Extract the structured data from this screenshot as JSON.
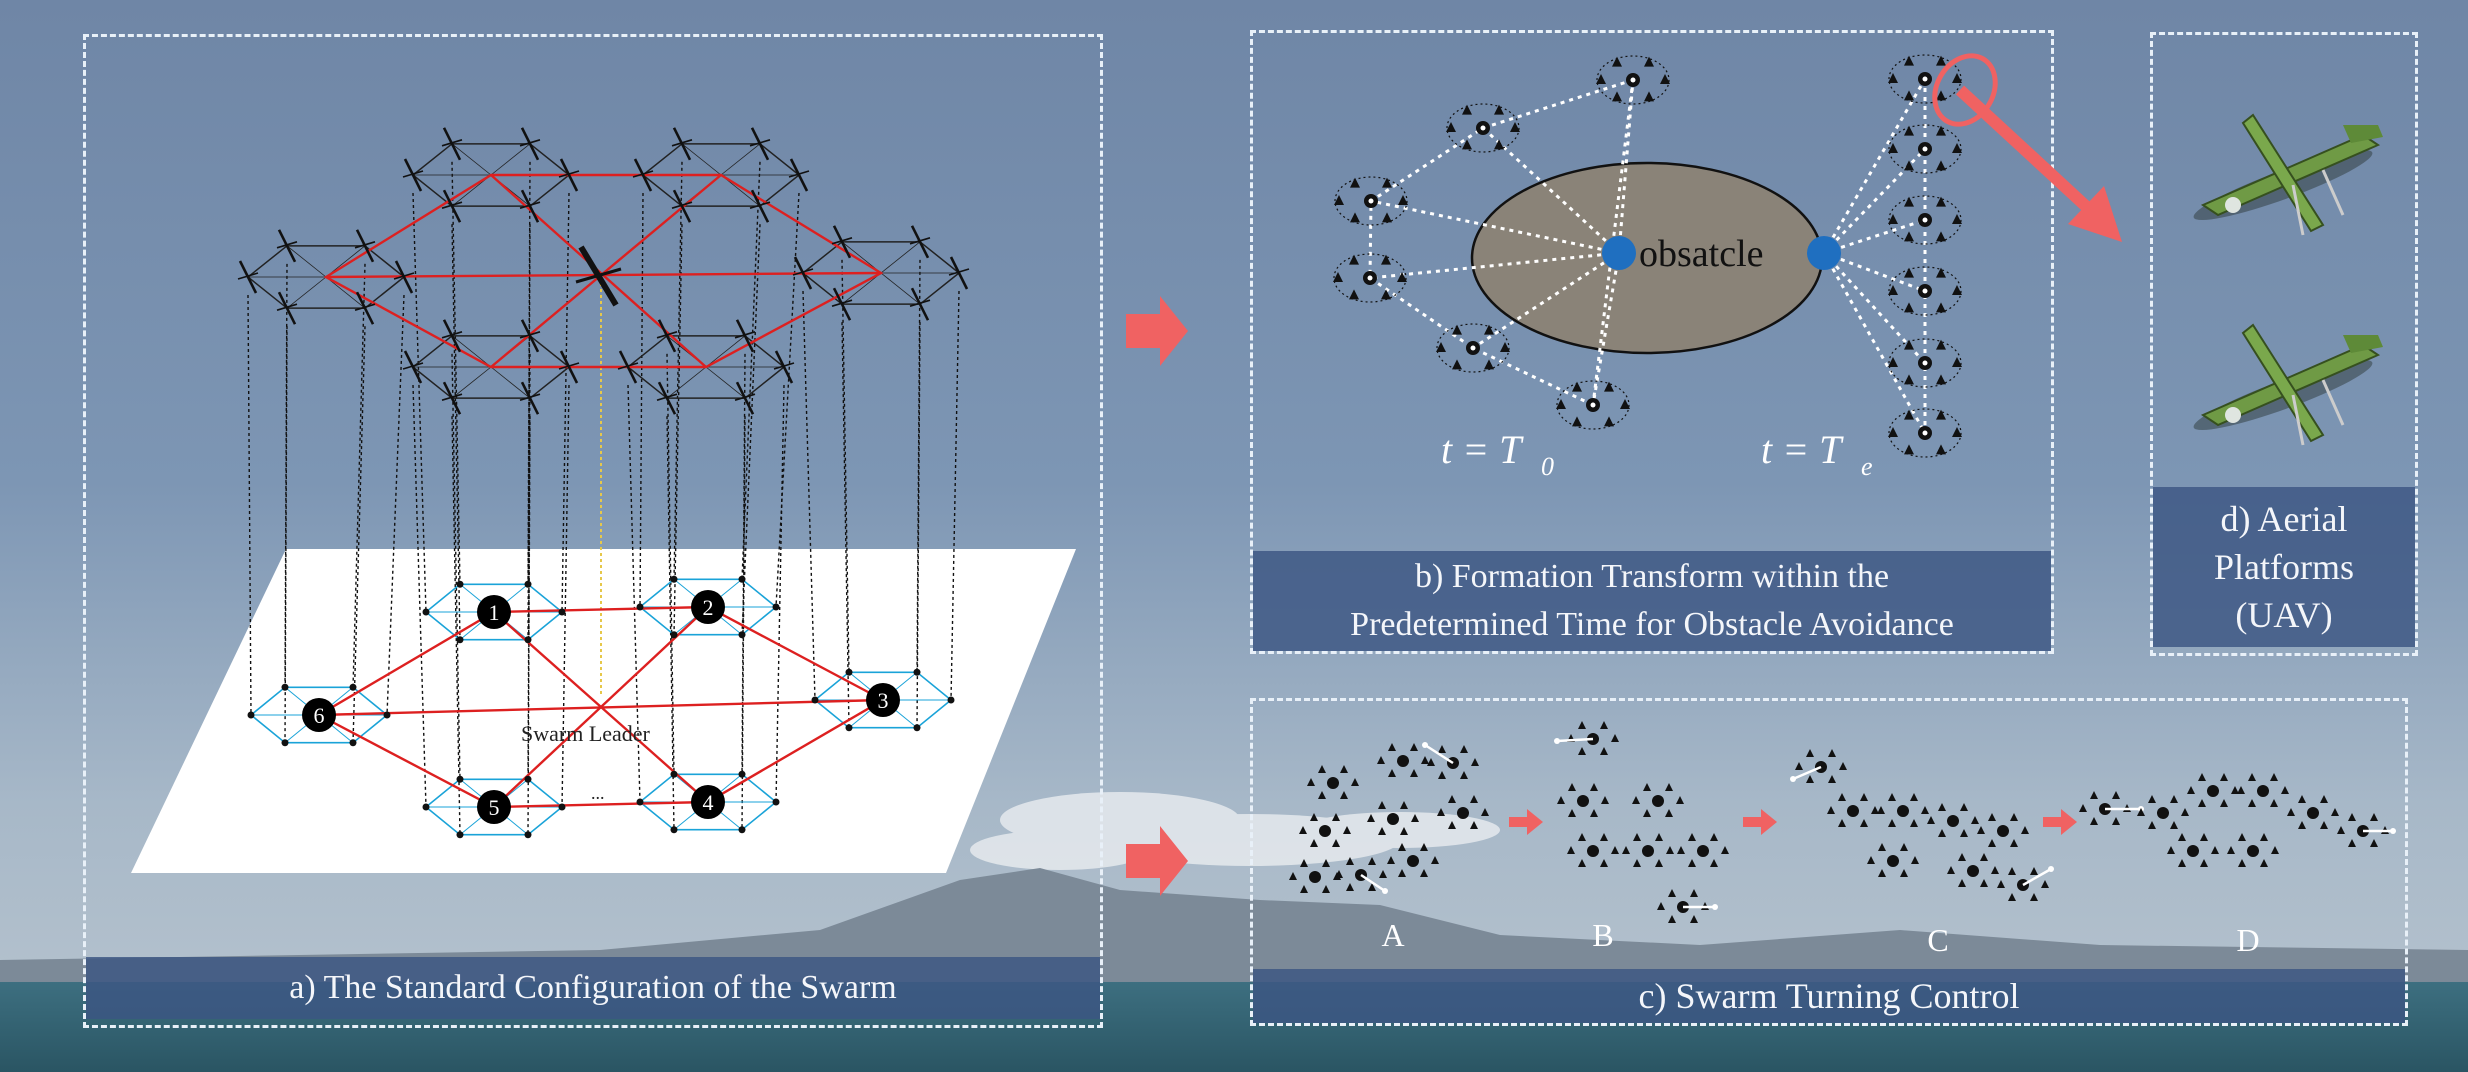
{
  "panels": {
    "a": {
      "caption": "a) The Standard Configuration of the Swarm",
      "leader_label": "Swarm Leader",
      "ellipsis": "...",
      "node_labels": [
        "1",
        "2",
        "3",
        "4",
        "5",
        "6"
      ]
    },
    "b": {
      "caption_line1": "b) Formation Transform within the",
      "caption_line2": "Predetermined Time for Obstacle Avoidance",
      "obstacle_label": "obsatcle",
      "time_start_prefix": "t = T",
      "time_start_sub": "0",
      "time_end_prefix": "t = T",
      "time_end_sub": "e"
    },
    "c": {
      "caption": "c) Swarm Turning Control",
      "stage_labels": [
        "A",
        "B",
        "C",
        "D"
      ]
    },
    "d": {
      "caption_line1": "d) Aerial",
      "caption_line2": "Platforms",
      "caption_line3": "(UAV)"
    }
  },
  "colors": {
    "panel_border": "#e8f0f8",
    "caption_bg": "#3c5582",
    "arrow": "#f06262",
    "red_link": "#dd2020",
    "blue_hex": "#1aa3d8",
    "obstacle_fill": "#8a8378",
    "node_blue": "#1f6fc0",
    "uav_green": "#6f9a45"
  }
}
